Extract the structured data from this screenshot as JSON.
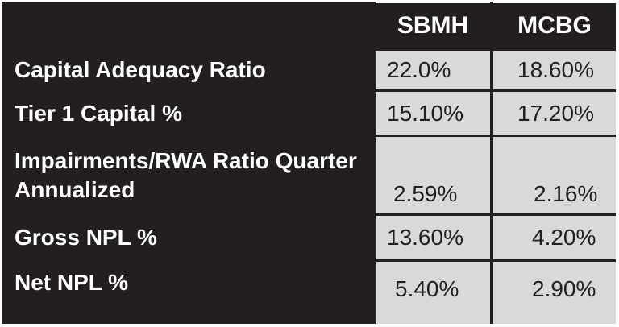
{
  "table": {
    "columns": [
      "SBMH",
      "MCBG"
    ],
    "rows": [
      {
        "label": "Capital Adequacy Ratio",
        "values": [
          "22.0%",
          "18.60%"
        ]
      },
      {
        "label": "Tier 1 Capital %",
        "values": [
          "15.10%",
          "17.20%"
        ]
      },
      {
        "label": "Impairments/RWA Ratio Quarter Annualized",
        "values": [
          "2.59%",
          "2.16%"
        ]
      },
      {
        "label": "Gross NPL %",
        "values": [
          "13.60%",
          "4.20%"
        ]
      },
      {
        "label": "Net NPL %",
        "values": [
          "5.40%",
          "2.90%"
        ]
      }
    ]
  },
  "colors": {
    "dark": "#231f20",
    "value_bg": "#d9d9d9",
    "text_light": "#ffffff"
  }
}
